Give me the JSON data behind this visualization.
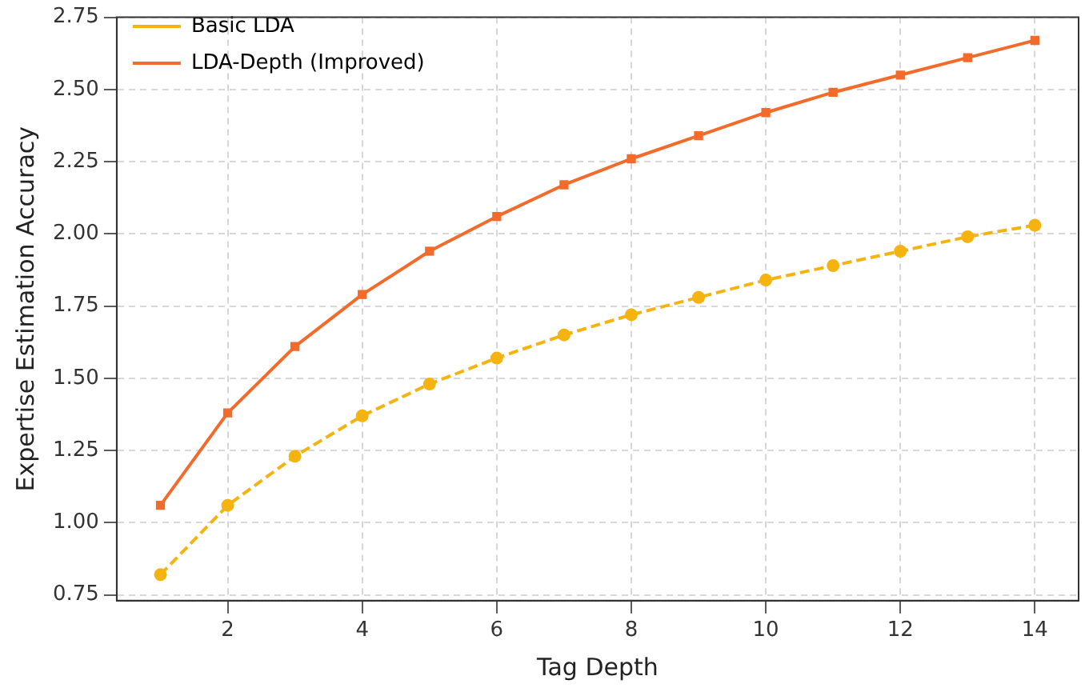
{
  "chart_data": {
    "type": "line",
    "xlabel": "Tag Depth",
    "ylabel": "Expertise Estimation Accuracy",
    "x": [
      1,
      2,
      3,
      4,
      5,
      6,
      7,
      8,
      9,
      10,
      11,
      12,
      13,
      14
    ],
    "series": [
      {
        "name": "Basic LDA",
        "color": "#f5b30f",
        "marker": "circle",
        "line_style": "dashed",
        "values": [
          0.82,
          1.06,
          1.23,
          1.37,
          1.48,
          1.57,
          1.65,
          1.72,
          1.78,
          1.84,
          1.89,
          1.94,
          1.99,
          2.03
        ]
      },
      {
        "name": "LDA-Depth (Improved)",
        "color": "#f26b2a",
        "marker": "square",
        "line_style": "solid",
        "values": [
          1.06,
          1.38,
          1.61,
          1.79,
          1.94,
          2.06,
          2.17,
          2.26,
          2.34,
          2.42,
          2.49,
          2.55,
          2.61,
          2.67
        ]
      }
    ],
    "xlim": [
      0.35,
      14.65
    ],
    "xticks": [
      2,
      4,
      6,
      8,
      10,
      12,
      14
    ],
    "ylim": [
      0.73,
      2.75
    ],
    "yticks": [
      {
        "value": 0.75,
        "label": "0.75"
      },
      {
        "value": 1,
        "label": "1.00"
      },
      {
        "value": 1.25,
        "label": "1.25"
      },
      {
        "value": 1.5,
        "label": "1.50"
      },
      {
        "value": 1.75,
        "label": "1.75"
      },
      {
        "value": 2,
        "label": "2.00"
      },
      {
        "value": 2.25,
        "label": "2.25"
      },
      {
        "value": 2.5,
        "label": "2.50"
      },
      {
        "value": 2.75,
        "label": "2.75"
      }
    ],
    "grid": true,
    "legend": "top left"
  }
}
